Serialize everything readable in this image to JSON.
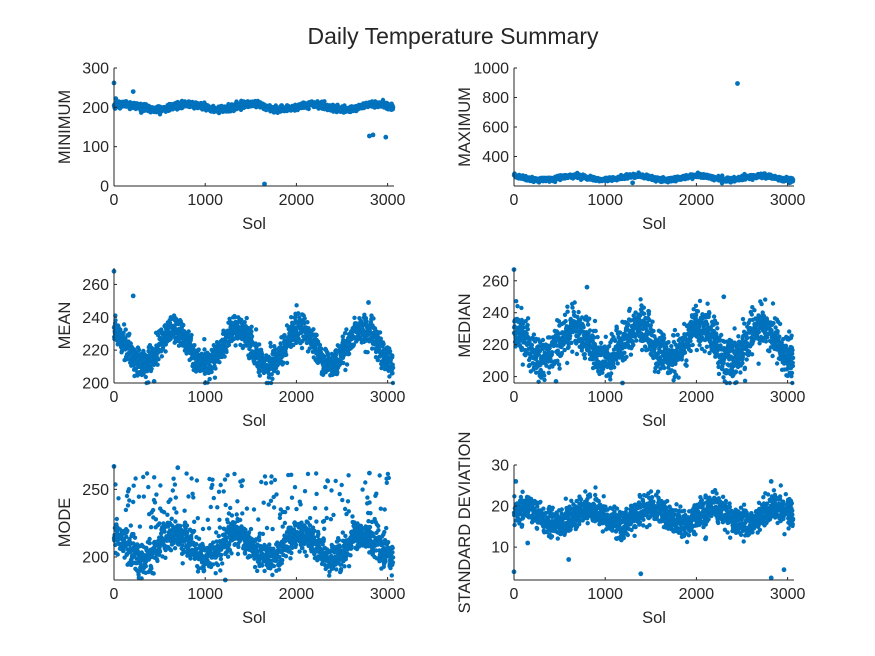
{
  "figure": {
    "title": "Daily Temperature Summary"
  },
  "colors": {
    "marker": "#0072BD",
    "axis": "#262626"
  },
  "chart_data": [
    {
      "type": "scatter",
      "ylabel": "MINIMUM",
      "xlabel": "Sol",
      "xlim": [
        0,
        3070
      ],
      "ylim": [
        0,
        300
      ],
      "xticks": [
        0,
        1000,
        2000,
        3000
      ],
      "yticks": [
        0,
        100,
        200,
        300
      ],
      "baseline": {
        "mean": 201,
        "amp": 7,
        "period": 687,
        "phase": 0.5,
        "noise": 4
      },
      "outliers": [
        [
          0,
          262
        ],
        [
          20,
          222
        ],
        [
          210,
          240
        ],
        [
          1650,
          5
        ],
        [
          2800,
          127
        ],
        [
          2840,
          130
        ],
        [
          2980,
          124
        ]
      ],
      "grid": false,
      "legend": "none"
    },
    {
      "type": "scatter",
      "ylabel": "MAXIMUM",
      "xlabel": "Sol",
      "xlim": [
        0,
        3070
      ],
      "ylim": [
        200,
        1000
      ],
      "xticks": [
        0,
        1000,
        2000,
        3000
      ],
      "yticks": [
        400,
        600,
        800,
        1000
      ],
      "baseline": {
        "mean": 255,
        "amp": 14,
        "period": 687,
        "phase": 2.0,
        "noise": 7
      },
      "outliers": [
        [
          2450,
          895
        ],
        [
          1300,
          222
        ],
        [
          2900,
          240
        ]
      ],
      "grid": false,
      "legend": "none"
    },
    {
      "type": "scatter",
      "ylabel": "MEAN",
      "xlabel": "Sol",
      "xlim": [
        0,
        3070
      ],
      "ylim": [
        200,
        270
      ],
      "xticks": [
        0,
        1000,
        2000,
        3000
      ],
      "yticks": [
        200,
        220,
        240,
        260
      ],
      "baseline": {
        "mean": 222,
        "amp": 11,
        "period": 687,
        "phase": 1.8,
        "noise": 4.5
      },
      "outliers": [
        [
          0,
          268
        ],
        [
          210,
          253
        ],
        [
          440,
          201
        ],
        [
          2790,
          249
        ]
      ],
      "grid": false,
      "legend": "none"
    },
    {
      "type": "scatter",
      "ylabel": "MEDIAN",
      "xlabel": "Sol",
      "xlim": [
        0,
        3070
      ],
      "ylim": [
        196,
        268
      ],
      "xticks": [
        0,
        1000,
        2000,
        3000
      ],
      "yticks": [
        200,
        220,
        240,
        260
      ],
      "baseline": {
        "mean": 221,
        "amp": 10,
        "period": 687,
        "phase": 1.8,
        "noise": 7
      },
      "outliers": [
        [
          0,
          267
        ],
        [
          800,
          256
        ],
        [
          2300,
          250
        ],
        [
          1190,
          196
        ],
        [
          460,
          197
        ]
      ],
      "grid": false,
      "legend": "none"
    },
    {
      "type": "scatter",
      "ylabel": "MODE",
      "xlabel": "Sol",
      "xlim": [
        0,
        3070
      ],
      "ylim": [
        183,
        268
      ],
      "xticks": [
        0,
        1000,
        2000,
        3000
      ],
      "yticks": [
        200,
        250
      ],
      "baseline": {
        "mean": 208,
        "amp": 9,
        "period": 687,
        "phase": 1.8,
        "noise": 6,
        "high_frac": 0.12,
        "high_range": [
          218,
          262
        ]
      },
      "outliers": [
        [
          0,
          267
        ],
        [
          700,
          266
        ],
        [
          1220,
          183
        ],
        [
          2800,
          262
        ]
      ],
      "grid": false,
      "legend": "none"
    },
    {
      "type": "scatter",
      "ylabel": "STANDARD DEVIATION",
      "xlabel": "Sol",
      "xlim": [
        0,
        3070
      ],
      "ylim": [
        2,
        30
      ],
      "xticks": [
        0,
        1000,
        2000,
        3000
      ],
      "yticks": [
        10,
        20,
        30
      ],
      "baseline": {
        "mean": 17.5,
        "amp": 2,
        "period": 687,
        "phase": 0.3,
        "noise": 1.8
      },
      "outliers": [
        [
          0,
          4
        ],
        [
          20,
          26
        ],
        [
          600,
          7
        ],
        [
          1390,
          3.5
        ],
        [
          2820,
          2.5
        ],
        [
          2960,
          4.5
        ],
        [
          2820,
          26
        ],
        [
          150,
          11
        ],
        [
          2100,
          12
        ]
      ],
      "grid": false,
      "legend": "none"
    }
  ]
}
